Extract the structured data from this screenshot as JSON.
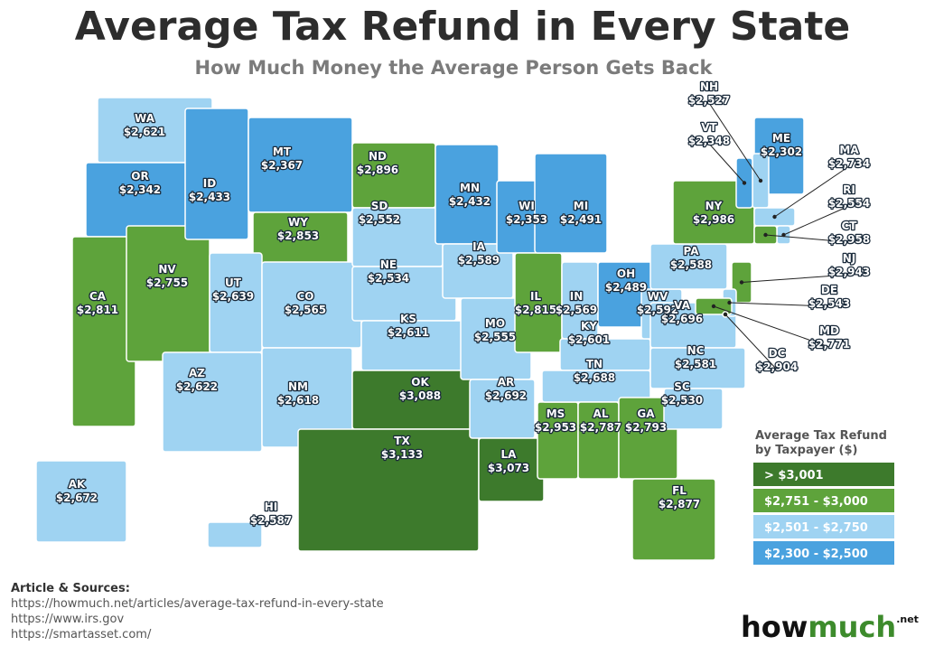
{
  "title": "Average Tax Refund in Every State",
  "subtitle": "How Much Money the Average Person Gets Back",
  "legend": {
    "title": [
      "Average Tax Refund",
      "by Taxpayer ($)"
    ],
    "items": [
      {
        "label": "> $3,001",
        "min": 3001,
        "color": "#3d7a2c"
      },
      {
        "label": "$2,751 - $3,000",
        "min": 2751,
        "color": "#5ea33b"
      },
      {
        "label": "$2,501 - $2,750",
        "min": 2501,
        "color": "#9fd3f2"
      },
      {
        "label": "$2,300 - $2,500",
        "min": 2300,
        "color": "#4aa2df"
      }
    ]
  },
  "states": [
    {
      "abbr": "WA",
      "value": 2621,
      "value_label": "$2,621"
    },
    {
      "abbr": "OR",
      "value": 2342,
      "value_label": "$2,342"
    },
    {
      "abbr": "CA",
      "value": 2811,
      "value_label": "$2,811"
    },
    {
      "abbr": "NV",
      "value": 2755,
      "value_label": "$2,755"
    },
    {
      "abbr": "ID",
      "value": 2433,
      "value_label": "$2,433"
    },
    {
      "abbr": "MT",
      "value": 2367,
      "value_label": "$2,367"
    },
    {
      "abbr": "WY",
      "value": 2853,
      "value_label": "$2,853"
    },
    {
      "abbr": "UT",
      "value": 2639,
      "value_label": "$2,639"
    },
    {
      "abbr": "AZ",
      "value": 2622,
      "value_label": "$2,622"
    },
    {
      "abbr": "CO",
      "value": 2565,
      "value_label": "$2,565"
    },
    {
      "abbr": "NM",
      "value": 2618,
      "value_label": "$2,618"
    },
    {
      "abbr": "ND",
      "value": 2896,
      "value_label": "$2,896"
    },
    {
      "abbr": "SD",
      "value": 2552,
      "value_label": "$2,552"
    },
    {
      "abbr": "NE",
      "value": 2534,
      "value_label": "$2,534"
    },
    {
      "abbr": "KS",
      "value": 2611,
      "value_label": "$2,611"
    },
    {
      "abbr": "OK",
      "value": 3088,
      "value_label": "$3,088"
    },
    {
      "abbr": "TX",
      "value": 3133,
      "value_label": "$3,133"
    },
    {
      "abbr": "MN",
      "value": 2432,
      "value_label": "$2,432"
    },
    {
      "abbr": "IA",
      "value": 2589,
      "value_label": "$2,589"
    },
    {
      "abbr": "MO",
      "value": 2555,
      "value_label": "$2,555"
    },
    {
      "abbr": "AR",
      "value": 2692,
      "value_label": "$2,692"
    },
    {
      "abbr": "LA",
      "value": 3073,
      "value_label": "$3,073"
    },
    {
      "abbr": "WI",
      "value": 2353,
      "value_label": "$2,353"
    },
    {
      "abbr": "IL",
      "value": 2815,
      "value_label": "$2,815"
    },
    {
      "abbr": "MS",
      "value": 2953,
      "value_label": "$2,953"
    },
    {
      "abbr": "MI",
      "value": 2491,
      "value_label": "$2,491"
    },
    {
      "abbr": "IN",
      "value": 2569,
      "value_label": "$2,569"
    },
    {
      "abbr": "KY",
      "value": 2601,
      "value_label": "$2,601"
    },
    {
      "abbr": "TN",
      "value": 2688,
      "value_label": "$2,688"
    },
    {
      "abbr": "AL",
      "value": 2787,
      "value_label": "$2,787"
    },
    {
      "abbr": "GA",
      "value": 2793,
      "value_label": "$2,793"
    },
    {
      "abbr": "FL",
      "value": 2877,
      "value_label": "$2,877"
    },
    {
      "abbr": "OH",
      "value": 2489,
      "value_label": "$2,489"
    },
    {
      "abbr": "WV",
      "value": 2592,
      "value_label": "$2,592"
    },
    {
      "abbr": "VA",
      "value": 2696,
      "value_label": "$2,696"
    },
    {
      "abbr": "NC",
      "value": 2581,
      "value_label": "$2,581"
    },
    {
      "abbr": "SC",
      "value": 2530,
      "value_label": "$2,530"
    },
    {
      "abbr": "PA",
      "value": 2588,
      "value_label": "$2,588"
    },
    {
      "abbr": "NY",
      "value": 2986,
      "value_label": "$2,986"
    },
    {
      "abbr": "ME",
      "value": 2302,
      "value_label": "$2,302"
    },
    {
      "abbr": "NH",
      "value": 2527,
      "value_label": "$2,527"
    },
    {
      "abbr": "VT",
      "value": 2348,
      "value_label": "$2,348"
    },
    {
      "abbr": "MA",
      "value": 2734,
      "value_label": "$2,734"
    },
    {
      "abbr": "RI",
      "value": 2554,
      "value_label": "$2,554"
    },
    {
      "abbr": "CT",
      "value": 2958,
      "value_label": "$2,958"
    },
    {
      "abbr": "NJ",
      "value": 2943,
      "value_label": "$2,943"
    },
    {
      "abbr": "DE",
      "value": 2543,
      "value_label": "$2,543"
    },
    {
      "abbr": "MD",
      "value": 2771,
      "value_label": "$2,771"
    },
    {
      "abbr": "DC",
      "value": 2904,
      "value_label": "$2,904"
    },
    {
      "abbr": "AK",
      "value": 2672,
      "value_label": "$2,672"
    },
    {
      "abbr": "HI",
      "value": 2587,
      "value_label": "$2,587"
    }
  ],
  "sources": {
    "heading": "Article & Sources:",
    "lines": [
      "https://howmuch.net/articles/average-tax-refund-in-every-state",
      "https://www.irs.gov",
      "https://smartasset.com/"
    ]
  },
  "logo": {
    "how": "how",
    "much": "much",
    "tld": ".net"
  }
}
